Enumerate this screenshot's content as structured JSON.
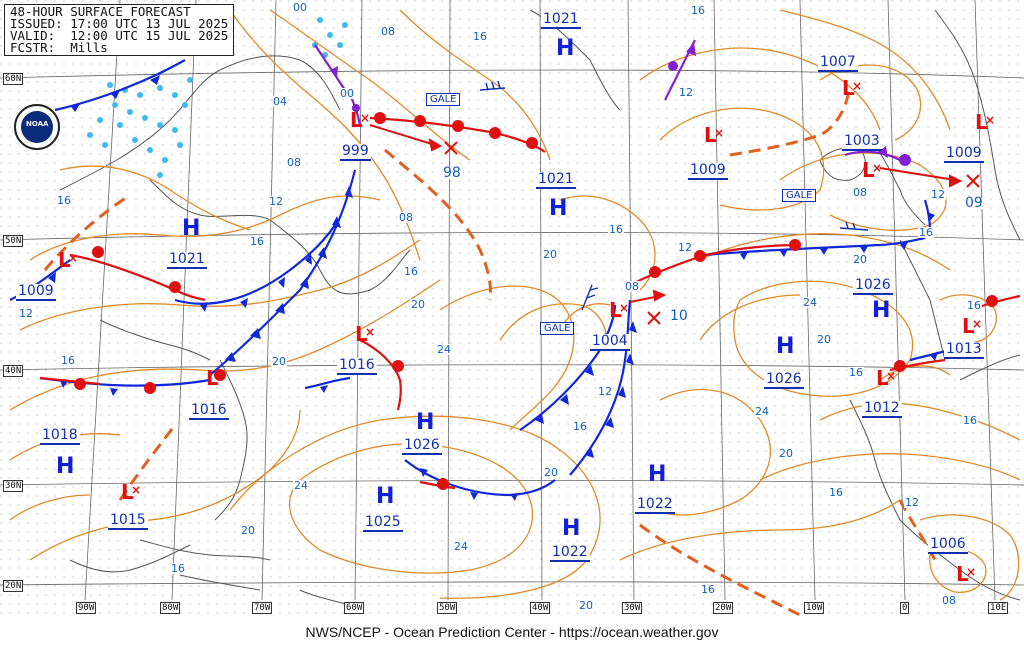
{
  "header": {
    "line1": "48-HOUR SURFACE FORECAST",
    "line2": "ISSUED: 17:00 UTC 13 JUL 2025",
    "line3": "VALID:  12:00 UTC 15 JUL 2025",
    "line4": "FCSTR:  Mills"
  },
  "footer": "NWS/NCEP - Ocean Prediction Center - https://ocean.weather.gov",
  "logo": "NOAA",
  "lat_labels": [
    "60N",
    "50N",
    "40N",
    "30N",
    "20N"
  ],
  "lon_labels": [
    "90W",
    "80W",
    "70W",
    "60W",
    "50W",
    "40W",
    "30W",
    "20W",
    "10W",
    "0",
    "10E"
  ],
  "highs": [
    {
      "label": "H",
      "value": "1021"
    },
    {
      "label": "H",
      "value": "1021"
    },
    {
      "label": "H",
      "value": "1021"
    },
    {
      "label": "H",
      "value": "1018"
    },
    {
      "label": "H",
      "value": "1026"
    },
    {
      "label": "H",
      "value": "1025"
    },
    {
      "label": "H",
      "value": "1022"
    },
    {
      "label": "H",
      "value": "1022"
    },
    {
      "label": "H",
      "value": "1026"
    },
    {
      "label": "H",
      "value": "1026"
    }
  ],
  "lows": [
    {
      "label": "L",
      "value": "999"
    },
    {
      "label": "L",
      "value": "1009"
    },
    {
      "label": "L",
      "value": "1016"
    },
    {
      "label": "L",
      "value": "1016"
    },
    {
      "label": "L",
      "value": "1015"
    },
    {
      "label": "L",
      "value": "1004"
    },
    {
      "label": "L",
      "value": "1009"
    },
    {
      "label": "L",
      "value": "1007"
    },
    {
      "label": "L",
      "value": "1003"
    },
    {
      "label": "L",
      "value": "1009"
    },
    {
      "label": "L",
      "value": "1013"
    },
    {
      "label": "L",
      "value": "1012"
    },
    {
      "label": "L",
      "value": "1006"
    }
  ],
  "future_positions": [
    "98",
    "10",
    "09"
  ],
  "gale": [
    "GALE",
    "GALE",
    "GALE"
  ],
  "isobar_labels": [
    "00",
    "08",
    "16",
    "04",
    "08",
    "12",
    "16",
    "16",
    "08",
    "16",
    "20",
    "12",
    "16",
    "16",
    "20",
    "24",
    "12",
    "08",
    "20",
    "16",
    "12",
    "20",
    "24",
    "20",
    "24",
    "16",
    "20",
    "24",
    "16",
    "20",
    "16",
    "12",
    "08",
    "16",
    "16",
    "12",
    "16",
    "20",
    "24",
    "16",
    "20",
    "08",
    "00",
    "12",
    "16"
  ],
  "colors": {
    "high": "#1020d8",
    "low": "#e01010",
    "isobar": "#e08a2a",
    "warm_front": "#e01010",
    "cold_front": "#1028d8",
    "occluded": "#8020d0",
    "ice": "#40b8f0"
  }
}
